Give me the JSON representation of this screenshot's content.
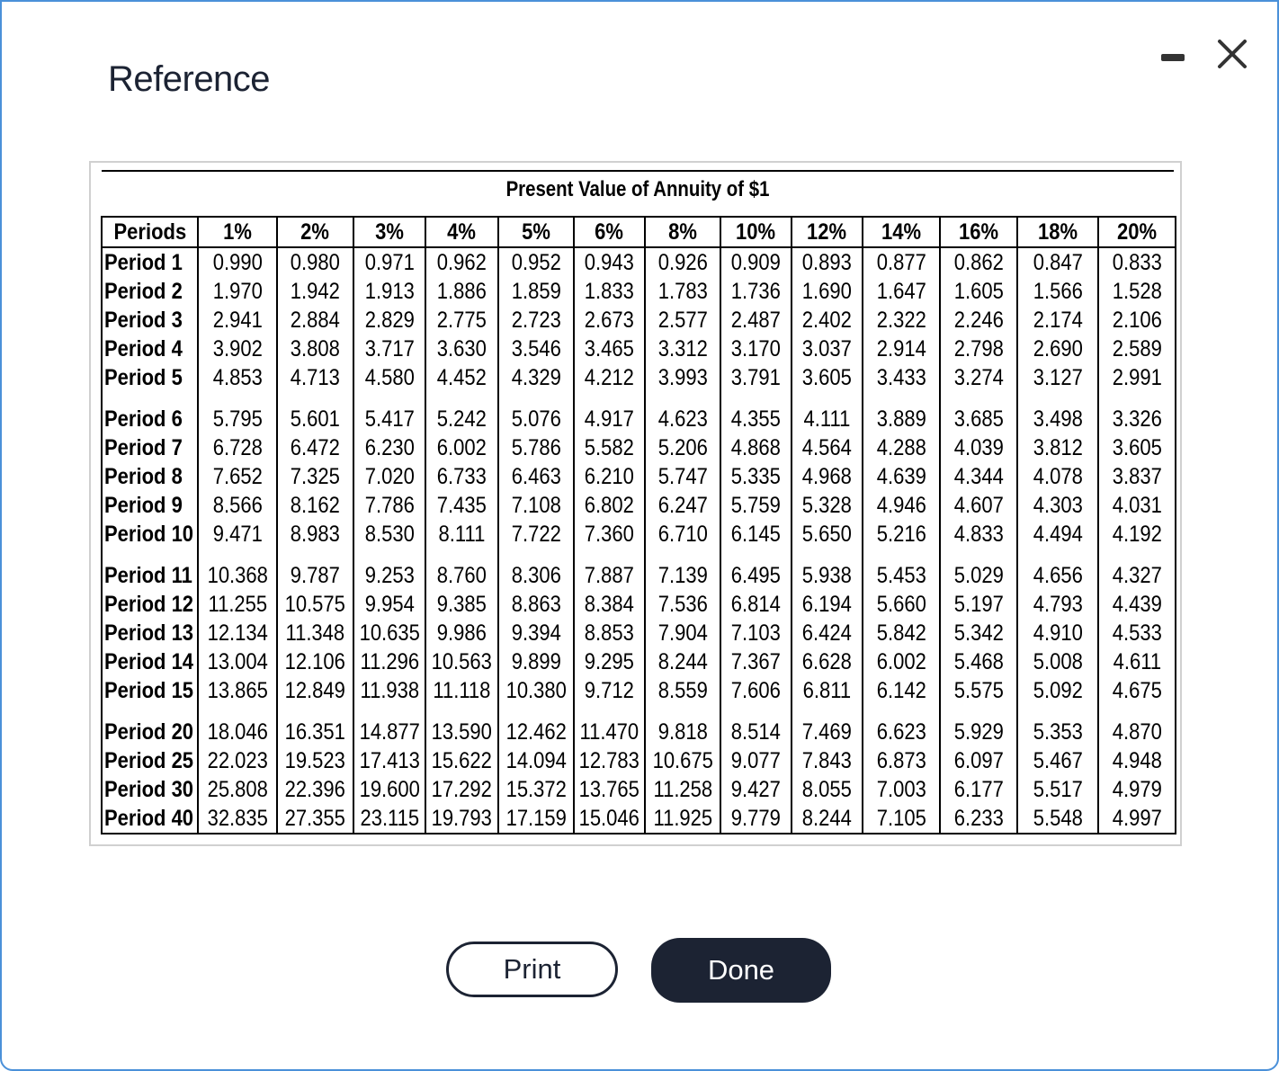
{
  "dialog": {
    "title": "Reference",
    "minimize_icon": "minimize-icon",
    "close_icon": "close-icon"
  },
  "table": {
    "title": "Present Value of Annuity of $1",
    "header": [
      "Periods",
      "1%",
      "2%",
      "3%",
      "4%",
      "5%",
      "6%",
      "8%",
      "10%",
      "12%",
      "14%",
      "16%",
      "18%",
      "20%"
    ],
    "groups": [
      [
        [
          "Period 1",
          "0.990",
          "0.980",
          "0.971",
          "0.962",
          "0.952",
          "0.943",
          "0.926",
          "0.909",
          "0.893",
          "0.877",
          "0.862",
          "0.847",
          "0.833"
        ],
        [
          "Period 2",
          "1.970",
          "1.942",
          "1.913",
          "1.886",
          "1.859",
          "1.833",
          "1.783",
          "1.736",
          "1.690",
          "1.647",
          "1.605",
          "1.566",
          "1.528"
        ],
        [
          "Period 3",
          "2.941",
          "2.884",
          "2.829",
          "2.775",
          "2.723",
          "2.673",
          "2.577",
          "2.487",
          "2.402",
          "2.322",
          "2.246",
          "2.174",
          "2.106"
        ],
        [
          "Period 4",
          "3.902",
          "3.808",
          "3.717",
          "3.630",
          "3.546",
          "3.465",
          "3.312",
          "3.170",
          "3.037",
          "2.914",
          "2.798",
          "2.690",
          "2.589"
        ],
        [
          "Period 5",
          "4.853",
          "4.713",
          "4.580",
          "4.452",
          "4.329",
          "4.212",
          "3.993",
          "3.791",
          "3.605",
          "3.433",
          "3.274",
          "3.127",
          "2.991"
        ]
      ],
      [
        [
          "Period 6",
          "5.795",
          "5.601",
          "5.417",
          "5.242",
          "5.076",
          "4.917",
          "4.623",
          "4.355",
          "4.111",
          "3.889",
          "3.685",
          "3.498",
          "3.326"
        ],
        [
          "Period 7",
          "6.728",
          "6.472",
          "6.230",
          "6.002",
          "5.786",
          "5.582",
          "5.206",
          "4.868",
          "4.564",
          "4.288",
          "4.039",
          "3.812",
          "3.605"
        ],
        [
          "Period 8",
          "7.652",
          "7.325",
          "7.020",
          "6.733",
          "6.463",
          "6.210",
          "5.747",
          "5.335",
          "4.968",
          "4.639",
          "4.344",
          "4.078",
          "3.837"
        ],
        [
          "Period 9",
          "8.566",
          "8.162",
          "7.786",
          "7.435",
          "7.108",
          "6.802",
          "6.247",
          "5.759",
          "5.328",
          "4.946",
          "4.607",
          "4.303",
          "4.031"
        ],
        [
          "Period 10",
          "9.471",
          "8.983",
          "8.530",
          "8.111",
          "7.722",
          "7.360",
          "6.710",
          "6.145",
          "5.650",
          "5.216",
          "4.833",
          "4.494",
          "4.192"
        ]
      ],
      [
        [
          "Period 11",
          "10.368",
          "9.787",
          "9.253",
          "8.760",
          "8.306",
          "7.887",
          "7.139",
          "6.495",
          "5.938",
          "5.453",
          "5.029",
          "4.656",
          "4.327"
        ],
        [
          "Period 12",
          "11.255",
          "10.575",
          "9.954",
          "9.385",
          "8.863",
          "8.384",
          "7.536",
          "6.814",
          "6.194",
          "5.660",
          "5.197",
          "4.793",
          "4.439"
        ],
        [
          "Period 13",
          "12.134",
          "11.348",
          "10.635",
          "9.986",
          "9.394",
          "8.853",
          "7.904",
          "7.103",
          "6.424",
          "5.842",
          "5.342",
          "4.910",
          "4.533"
        ],
        [
          "Period 14",
          "13.004",
          "12.106",
          "11.296",
          "10.563",
          "9.899",
          "9.295",
          "8.244",
          "7.367",
          "6.628",
          "6.002",
          "5.468",
          "5.008",
          "4.611"
        ],
        [
          "Period 15",
          "13.865",
          "12.849",
          "11.938",
          "11.118",
          "10.380",
          "9.712",
          "8.559",
          "7.606",
          "6.811",
          "6.142",
          "5.575",
          "5.092",
          "4.675"
        ]
      ],
      [
        [
          "Period 20",
          "18.046",
          "16.351",
          "14.877",
          "13.590",
          "12.462",
          "11.470",
          "9.818",
          "8.514",
          "7.469",
          "6.623",
          "5.929",
          "5.353",
          "4.870"
        ],
        [
          "Period 25",
          "22.023",
          "19.523",
          "17.413",
          "15.622",
          "14.094",
          "12.783",
          "10.675",
          "9.077",
          "7.843",
          "6.873",
          "6.097",
          "5.467",
          "4.948"
        ],
        [
          "Period 30",
          "25.808",
          "22.396",
          "19.600",
          "17.292",
          "15.372",
          "13.765",
          "11.258",
          "9.427",
          "8.055",
          "7.003",
          "6.177",
          "5.517",
          "4.979"
        ],
        [
          "Period 40",
          "32.835",
          "27.355",
          "23.115",
          "19.793",
          "17.159",
          "15.046",
          "11.925",
          "9.779",
          "8.244",
          "7.105",
          "6.233",
          "5.548",
          "4.997"
        ]
      ]
    ]
  },
  "buttons": {
    "print_label": "Print",
    "done_label": "Done"
  }
}
